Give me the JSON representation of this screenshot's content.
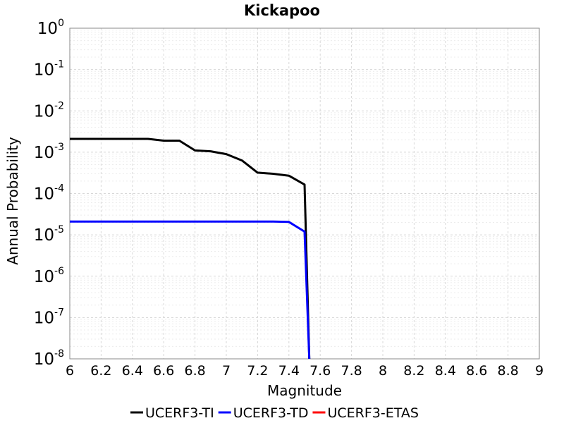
{
  "chart_data": {
    "type": "line",
    "title": "Kickapoo",
    "xlabel": "Magnitude",
    "ylabel": "Annual Probability",
    "xlim": [
      6,
      9
    ],
    "ylim": [
      1e-08,
      1
    ],
    "y_scale": "log",
    "grid": true,
    "legend_position": "bottom",
    "x_ticks": [
      "6",
      "6.2",
      "6.4",
      "6.6",
      "6.8",
      "7",
      "7.2",
      "7.4",
      "7.6",
      "7.8",
      "8",
      "8.2",
      "8.4",
      "8.6",
      "8.8",
      "9"
    ],
    "y_ticks": [
      {
        "base": "10",
        "exp": "0"
      },
      {
        "base": "10",
        "exp": "-1"
      },
      {
        "base": "10",
        "exp": "-2"
      },
      {
        "base": "10",
        "exp": "-3"
      },
      {
        "base": "10",
        "exp": "-4"
      },
      {
        "base": "10",
        "exp": "-5"
      },
      {
        "base": "10",
        "exp": "-6"
      },
      {
        "base": "10",
        "exp": "-7"
      },
      {
        "base": "10",
        "exp": "-8"
      }
    ],
    "series": [
      {
        "name": "UCERF3-TI",
        "color": "#000000",
        "x": [
          6.0,
          6.1,
          6.2,
          6.3,
          6.4,
          6.5,
          6.6,
          6.7,
          6.8,
          6.9,
          7.0,
          7.1,
          7.2,
          7.3,
          7.4,
          7.5,
          7.53
        ],
        "y": [
          0.0021,
          0.0021,
          0.0021,
          0.0021,
          0.0021,
          0.0021,
          0.0019,
          0.0019,
          0.0011,
          0.00105,
          0.0009,
          0.00063,
          0.00032,
          0.0003,
          0.00027,
          0.000165,
          1e-08
        ]
      },
      {
        "name": "UCERF3-TD",
        "color": "#0000ff",
        "x": [
          6.0,
          6.1,
          6.2,
          6.3,
          6.4,
          6.5,
          6.6,
          6.7,
          6.8,
          6.9,
          7.0,
          7.1,
          7.2,
          7.3,
          7.4,
          7.5,
          7.53
        ],
        "y": [
          2.1e-05,
          2.1e-05,
          2.1e-05,
          2.1e-05,
          2.1e-05,
          2.1e-05,
          2.1e-05,
          2.1e-05,
          2.1e-05,
          2.1e-05,
          2.1e-05,
          2.1e-05,
          2.1e-05,
          2.1e-05,
          2.05e-05,
          1.2e-05,
          1e-08
        ]
      },
      {
        "name": "UCERF3-ETAS",
        "color": "#ff0000",
        "x": [],
        "y": []
      }
    ]
  }
}
